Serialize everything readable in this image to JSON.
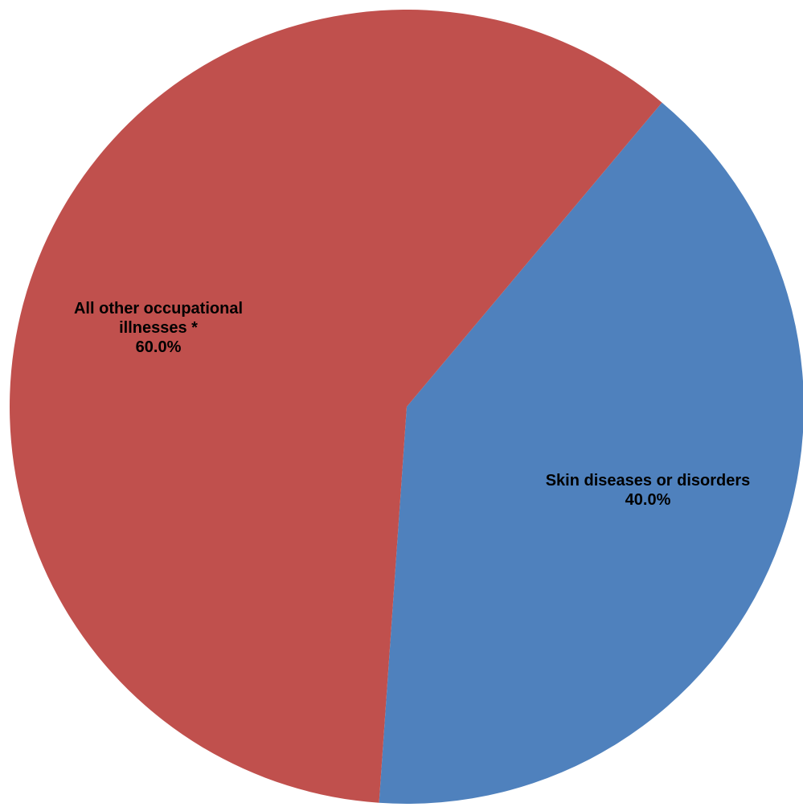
{
  "chart_data": {
    "type": "pie",
    "title": "",
    "slices": [
      {
        "category_lines": [
          "Skin diseases or disorders"
        ],
        "percent_label": "40.0%",
        "value": 40.0,
        "color": "#4f81bd"
      },
      {
        "category_lines": [
          "All other occupational",
          "illnesses *"
        ],
        "percent_label": "60.0%",
        "value": 60.0,
        "color": "#c0504d"
      }
    ],
    "legend": "none"
  }
}
